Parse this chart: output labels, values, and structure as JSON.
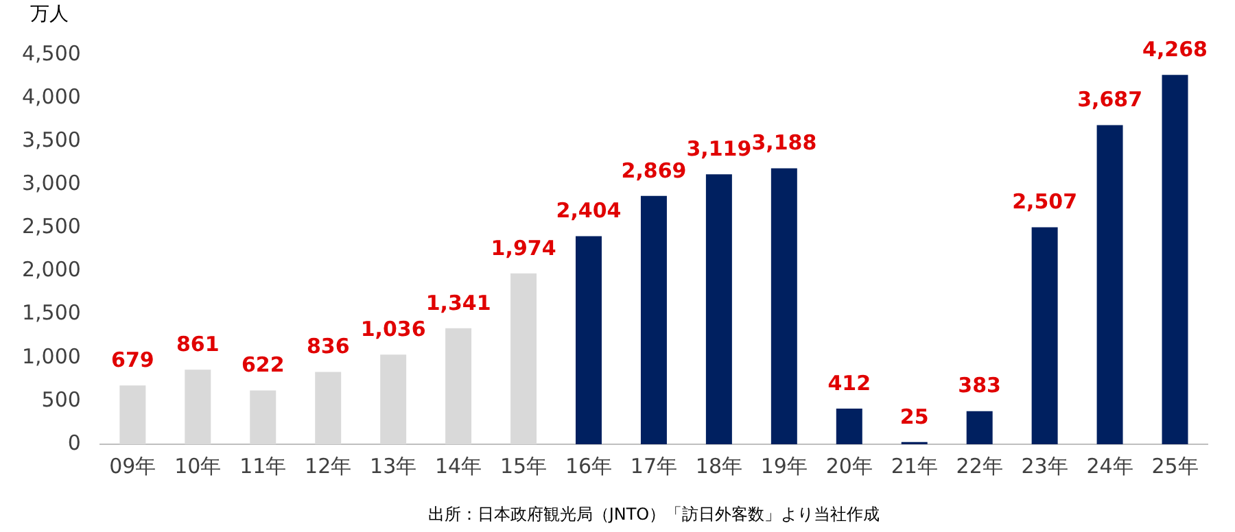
{
  "chart_data": {
    "type": "bar",
    "ylabel": "万人",
    "categories": [
      "09年",
      "10年",
      "11年",
      "12年",
      "13年",
      "14年",
      "15年",
      "16年",
      "17年",
      "18年",
      "19年",
      "20年",
      "21年",
      "22年",
      "23年",
      "24年",
      "25年"
    ],
    "values": [
      679,
      861,
      622,
      836,
      1036,
      1341,
      1974,
      2404,
      2869,
      3119,
      3188,
      412,
      25,
      383,
      2507,
      3687,
      4268
    ],
    "colors": [
      "#d9d9d9",
      "#d9d9d9",
      "#d9d9d9",
      "#d9d9d9",
      "#d9d9d9",
      "#d9d9d9",
      "#d9d9d9",
      "#002060",
      "#002060",
      "#002060",
      "#002060",
      "#002060",
      "#002060",
      "#002060",
      "#002060",
      "#002060",
      "#002060"
    ],
    "value_labels": [
      "679",
      "861",
      "622",
      "836",
      "1,036",
      "1,341",
      "1,974",
      "2,404",
      "2,869",
      "3,119",
      "3,188",
      "412",
      "25",
      "383",
      "2,507",
      "3,687",
      "4,268"
    ],
    "ylim": [
      0,
      4500
    ],
    "yticks": [
      0,
      500,
      {
        "value": 1000,
        "label": "1,000"
      },
      {
        "value": 1500,
        "label": "1,500"
      },
      {
        "value": 2000,
        "label": "2,000"
      },
      {
        "value": 2500,
        "label": "2,500"
      },
      {
        "value": 3000,
        "label": "3,000"
      },
      {
        "value": 3500,
        "label": "3,500"
      },
      {
        "value": 4000,
        "label": "4,000"
      },
      {
        "value": 4500,
        "label": "4,500"
      }
    ],
    "grid": false,
    "legend": false,
    "annotations": [
      "出所：日本政府観光局（JNTO）「訪日外客数」より当社作成"
    ]
  }
}
